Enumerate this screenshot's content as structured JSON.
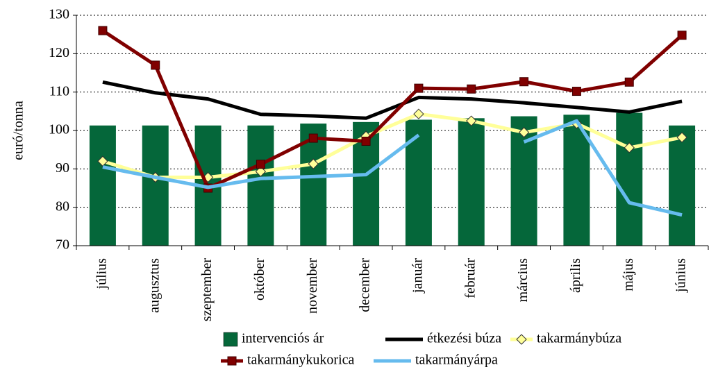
{
  "chart_data": {
    "type": "bar",
    "y_label": "euró/tonna",
    "categories": [
      "július",
      "augusztus",
      "szeptember",
      "október",
      "november",
      "december",
      "január",
      "február",
      "március",
      "április",
      "május",
      "június"
    ],
    "ylim": [
      70,
      130
    ],
    "yticks": [
      70,
      80,
      90,
      100,
      110,
      120,
      130
    ],
    "grid": true,
    "series": [
      {
        "name": "intervenciós ár",
        "type": "bar",
        "color": "#05673a",
        "values": [
          101.3,
          101.3,
          101.3,
          101.3,
          101.8,
          102.2,
          102.8,
          103.2,
          103.7,
          104.1,
          104.6,
          101.3
        ]
      },
      {
        "name": "étkezési búza",
        "type": "line",
        "color": "#000000",
        "values": [
          112.6,
          109.8,
          108.2,
          104.2,
          103.8,
          103.2,
          108.6,
          108.2,
          107.2,
          106.0,
          104.8,
          107.6
        ]
      },
      {
        "name": "takarmánybúza",
        "type": "line",
        "marker": "diamond",
        "color": "#ffff99",
        "values": [
          92.0,
          87.8,
          87.8,
          89.3,
          91.3,
          98.5,
          104.3,
          102.5,
          99.5,
          101.8,
          95.5,
          98.2
        ]
      },
      {
        "name": "takarmánykukorica",
        "type": "line",
        "marker": "square",
        "color": "#800000",
        "values": [
          126.0,
          117.0,
          85.0,
          91.2,
          98.0,
          97.2,
          111.0,
          110.8,
          112.7,
          110.2,
          112.6,
          124.8
        ]
      },
      {
        "name": "takarmányárpa",
        "type": "line",
        "color": "#66bbee",
        "values": [
          90.5,
          87.8,
          85.2,
          87.5,
          88.0,
          88.5,
          98.8,
          null,
          97.0,
          102.5,
          81.2,
          78.0
        ]
      }
    ]
  }
}
